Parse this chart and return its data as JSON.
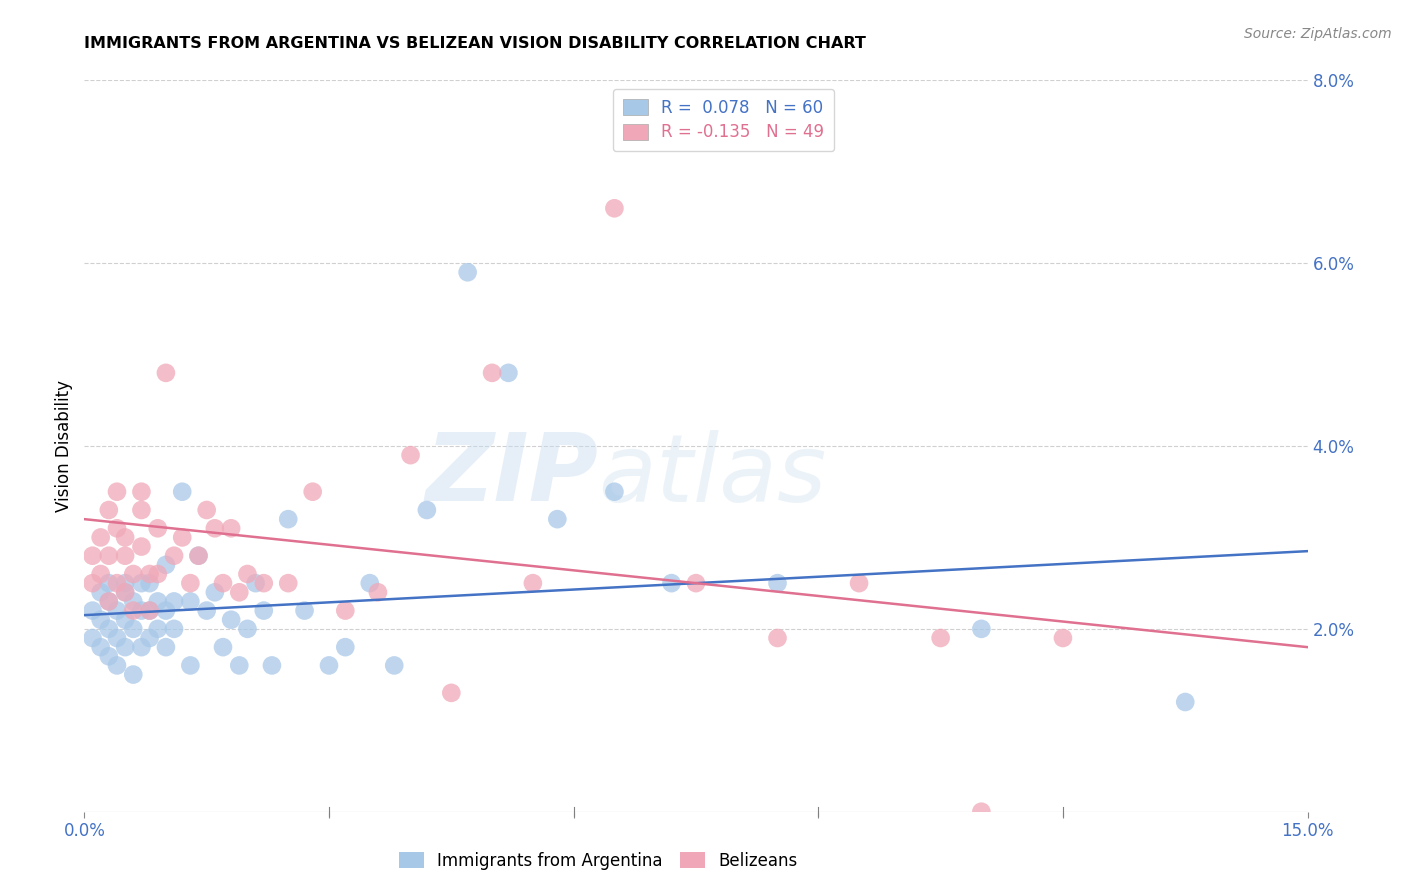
{
  "title": "IMMIGRANTS FROM ARGENTINA VS BELIZEAN VISION DISABILITY CORRELATION CHART",
  "source": "Source: ZipAtlas.com",
  "ylabel": "Vision Disability",
  "xlim": [
    0.0,
    0.15
  ],
  "ylim": [
    0.0,
    0.08
  ],
  "blue_color": "#a8c8e8",
  "pink_color": "#f0a8b8",
  "blue_line_color": "#4472c4",
  "pink_line_color": "#e07090",
  "watermark_zip": "ZIP",
  "watermark_atlas": "atlas",
  "blue_scatter_x": [
    0.001,
    0.001,
    0.002,
    0.002,
    0.002,
    0.003,
    0.003,
    0.003,
    0.003,
    0.004,
    0.004,
    0.004,
    0.005,
    0.005,
    0.005,
    0.005,
    0.006,
    0.006,
    0.006,
    0.007,
    0.007,
    0.007,
    0.008,
    0.008,
    0.008,
    0.009,
    0.009,
    0.01,
    0.01,
    0.01,
    0.011,
    0.011,
    0.012,
    0.013,
    0.013,
    0.014,
    0.015,
    0.016,
    0.017,
    0.018,
    0.019,
    0.02,
    0.021,
    0.022,
    0.023,
    0.025,
    0.027,
    0.03,
    0.032,
    0.035,
    0.038,
    0.042,
    0.047,
    0.052,
    0.058,
    0.065,
    0.072,
    0.085,
    0.11,
    0.135
  ],
  "blue_scatter_y": [
    0.022,
    0.019,
    0.024,
    0.021,
    0.018,
    0.023,
    0.02,
    0.017,
    0.025,
    0.022,
    0.019,
    0.016,
    0.024,
    0.021,
    0.018,
    0.025,
    0.023,
    0.02,
    0.015,
    0.025,
    0.022,
    0.018,
    0.022,
    0.019,
    0.025,
    0.023,
    0.02,
    0.027,
    0.022,
    0.018,
    0.02,
    0.023,
    0.035,
    0.023,
    0.016,
    0.028,
    0.022,
    0.024,
    0.018,
    0.021,
    0.016,
    0.02,
    0.025,
    0.022,
    0.016,
    0.032,
    0.022,
    0.016,
    0.018,
    0.025,
    0.016,
    0.033,
    0.059,
    0.048,
    0.032,
    0.035,
    0.025,
    0.025,
    0.02,
    0.012
  ],
  "pink_scatter_x": [
    0.001,
    0.001,
    0.002,
    0.002,
    0.003,
    0.003,
    0.003,
    0.004,
    0.004,
    0.004,
    0.005,
    0.005,
    0.005,
    0.006,
    0.006,
    0.007,
    0.007,
    0.007,
    0.008,
    0.008,
    0.009,
    0.009,
    0.01,
    0.011,
    0.012,
    0.013,
    0.014,
    0.015,
    0.016,
    0.017,
    0.018,
    0.019,
    0.02,
    0.022,
    0.025,
    0.028,
    0.032,
    0.036,
    0.04,
    0.045,
    0.05,
    0.055,
    0.065,
    0.075,
    0.085,
    0.095,
    0.105,
    0.11,
    0.12
  ],
  "pink_scatter_y": [
    0.028,
    0.025,
    0.03,
    0.026,
    0.033,
    0.028,
    0.023,
    0.035,
    0.031,
    0.025,
    0.028,
    0.024,
    0.03,
    0.026,
    0.022,
    0.035,
    0.029,
    0.033,
    0.026,
    0.022,
    0.031,
    0.026,
    0.048,
    0.028,
    0.03,
    0.025,
    0.028,
    0.033,
    0.031,
    0.025,
    0.031,
    0.024,
    0.026,
    0.025,
    0.025,
    0.035,
    0.022,
    0.024,
    0.039,
    0.013,
    0.048,
    0.025,
    0.066,
    0.025,
    0.019,
    0.025,
    0.019,
    0.0,
    0.019
  ],
  "blue_trend_x": [
    0.0,
    0.15
  ],
  "blue_trend_y": [
    0.0215,
    0.0285
  ],
  "pink_trend_x": [
    0.0,
    0.15
  ],
  "pink_trend_y": [
    0.032,
    0.018
  ]
}
